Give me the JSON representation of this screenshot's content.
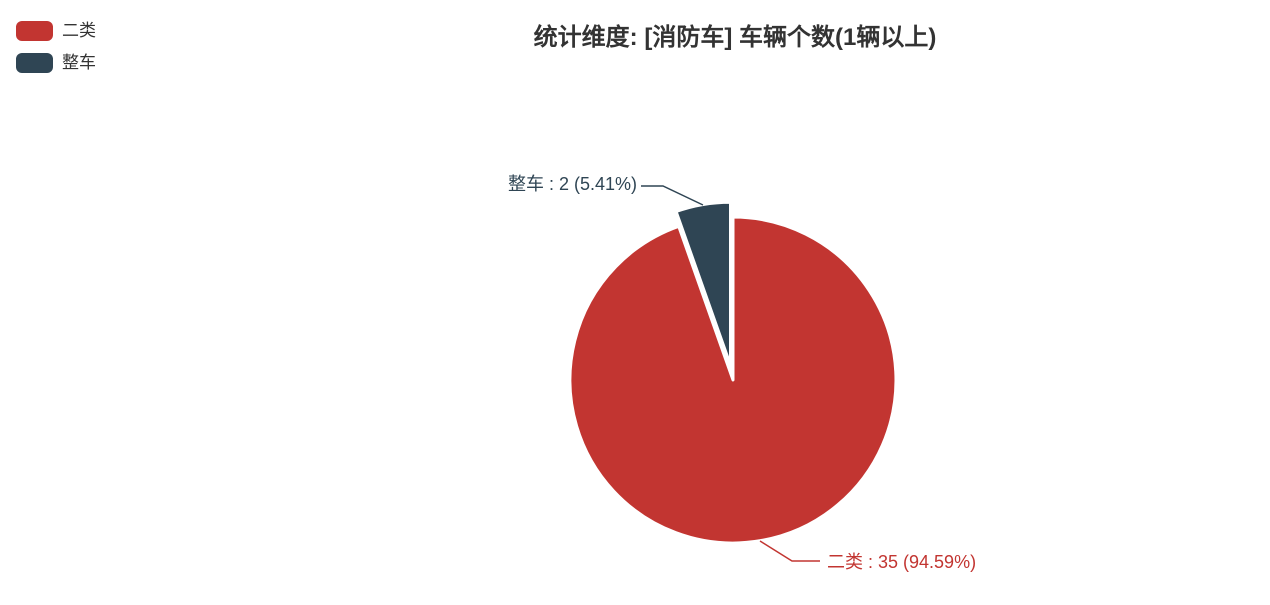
{
  "title": "统计维度: [消防车] 车辆个数(1辆以上)",
  "legend": {
    "items": [
      {
        "label": "二类",
        "color": "#c23531"
      },
      {
        "label": "整车",
        "color": "#2f4554"
      }
    ]
  },
  "chart_data": {
    "type": "pie",
    "title": "统计维度: [消防车] 车辆个数(1辆以上)",
    "legend_position": "top-left",
    "start_angle_deg": 90,
    "clockwise": true,
    "series": [
      {
        "name": "二类",
        "value": 35,
        "percent": 94.59,
        "color": "#c23531",
        "label": "二类 : 35 (94.59%)",
        "selected": false
      },
      {
        "name": "整车",
        "value": 2,
        "percent": 5.41,
        "color": "#2f4554",
        "label": "整车 : 2 (5.41%)",
        "selected": true
      }
    ]
  }
}
